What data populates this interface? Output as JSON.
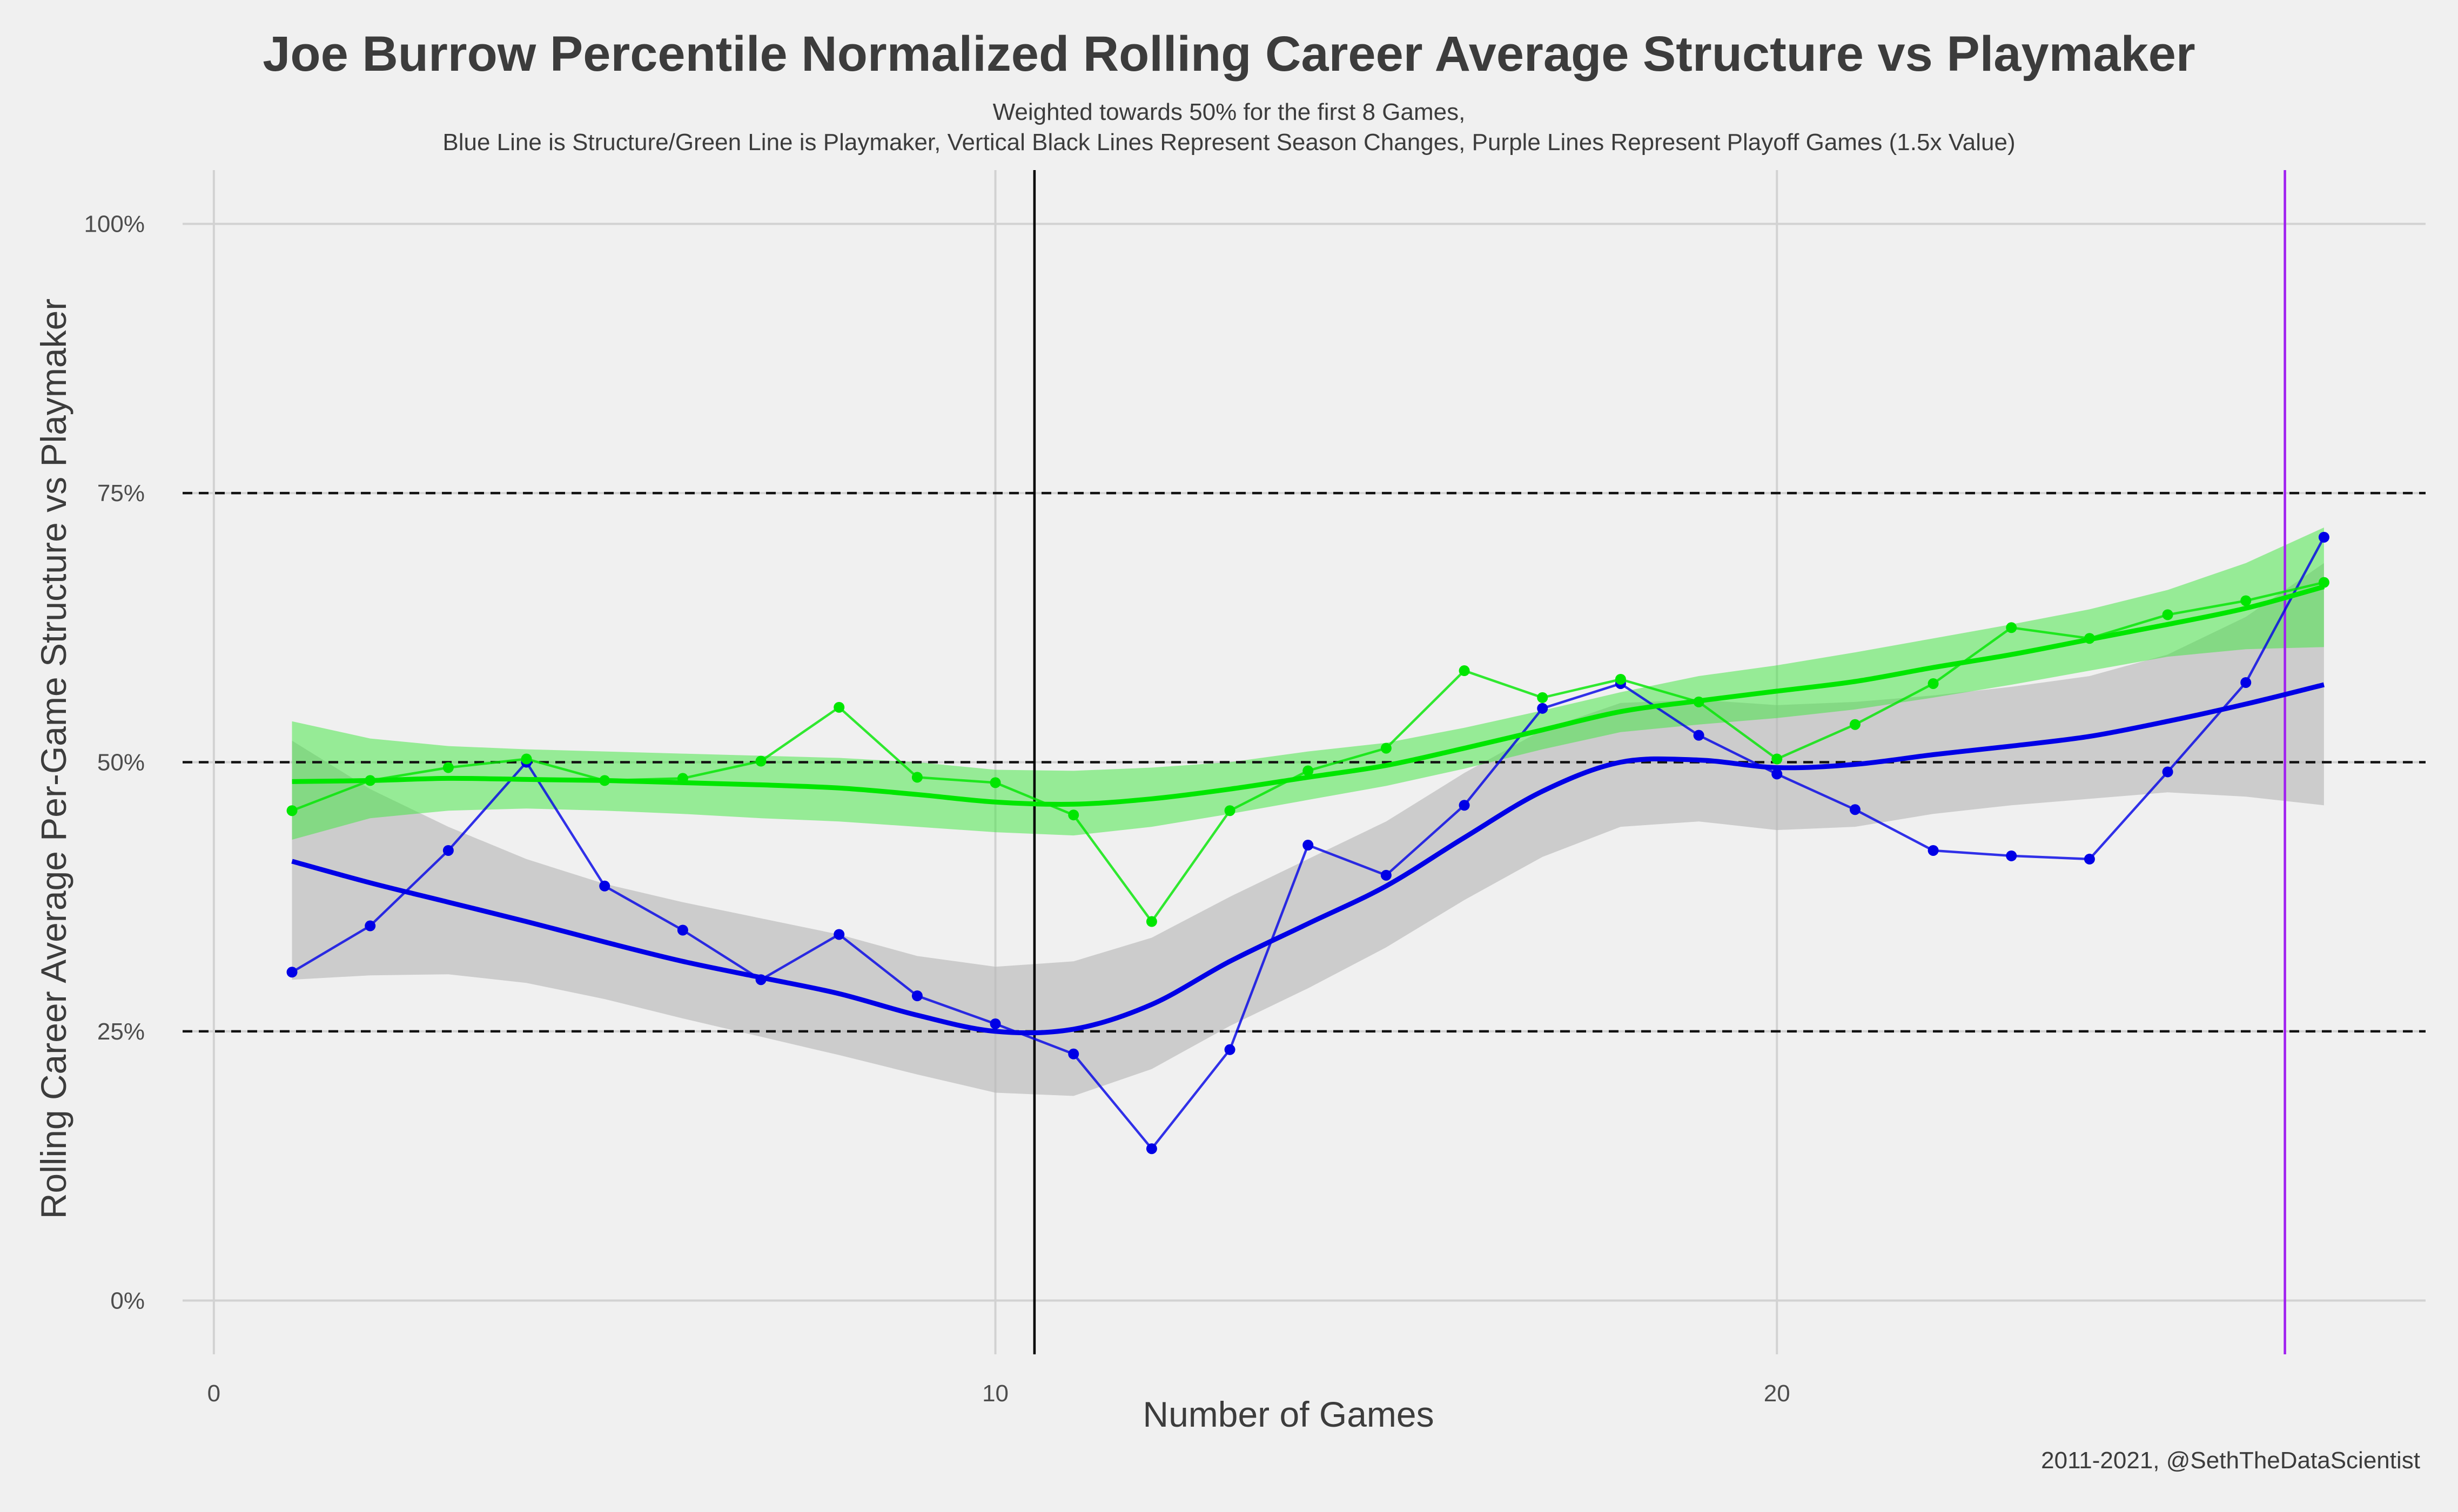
{
  "chart_data": {
    "type": "line",
    "title": "Joe Burrow Percentile Normalized Rolling Career Average Structure vs Playmaker",
    "subtitle_lines": [
      "Weighted towards 50% for the first 8 Games,",
      "Blue Line is Structure/Green Line is Playmaker, Vertical Black Lines Represent Season Changes, Purple Lines Represent Playoff Games (1.5x Value)"
    ],
    "xlabel": "Number of Games",
    "ylabel": "Rolling Career Average Per-Game Structure vs Playmaker",
    "caption": "2011-2021, @SethTheDataScientist",
    "xlim": [
      -0.4,
      28.3
    ],
    "ylim": [
      -0.05,
      1.05
    ],
    "x_ticks": [
      0,
      10,
      20
    ],
    "y_ticks": [
      0,
      0.25,
      0.5,
      0.75,
      1.0
    ],
    "y_tick_labels": [
      "0%",
      "25%",
      "50%",
      "75%",
      "100%"
    ],
    "reference_lines": [
      0.25,
      0.5,
      0.75
    ],
    "season_change_x": [
      10.5
    ],
    "playoff_x": [
      26.5
    ],
    "x": [
      1,
      2,
      3,
      4,
      5,
      6,
      7,
      8,
      9,
      10,
      11,
      12,
      13,
      14,
      15,
      16,
      17,
      18,
      19,
      20,
      21,
      22,
      23,
      24,
      25,
      26,
      27
    ],
    "series": [
      {
        "name": "Structure",
        "color": "#0000e6",
        "values": [
          0.305,
          0.348,
          0.418,
          0.5,
          0.385,
          0.344,
          0.298,
          0.34,
          0.283,
          0.257,
          0.229,
          0.141,
          0.233,
          0.423,
          0.395,
          0.46,
          0.55,
          0.573,
          0.525,
          0.489,
          0.456,
          0.418,
          0.413,
          0.41,
          0.491,
          0.574,
          0.709
        ],
        "smooth": [
          0.408,
          0.388,
          0.37,
          0.352,
          0.333,
          0.315,
          0.3,
          0.285,
          0.265,
          0.25,
          0.252,
          0.275,
          0.315,
          0.35,
          0.385,
          0.43,
          0.473,
          0.5,
          0.502,
          0.495,
          0.498,
          0.507,
          0.515,
          0.524,
          0.538,
          0.554,
          0.572
        ],
        "band_low": [
          0.298,
          0.302,
          0.303,
          0.295,
          0.28,
          0.262,
          0.245,
          0.228,
          0.21,
          0.193,
          0.19,
          0.215,
          0.255,
          0.29,
          0.328,
          0.372,
          0.412,
          0.44,
          0.445,
          0.437,
          0.44,
          0.452,
          0.46,
          0.466,
          0.472,
          0.468,
          0.46
        ],
        "band_high": [
          0.52,
          0.475,
          0.44,
          0.41,
          0.387,
          0.37,
          0.355,
          0.34,
          0.32,
          0.31,
          0.315,
          0.337,
          0.375,
          0.41,
          0.445,
          0.49,
          0.53,
          0.555,
          0.558,
          0.553,
          0.556,
          0.562,
          0.57,
          0.58,
          0.6,
          0.635,
          0.685
        ]
      },
      {
        "name": "Playmaker",
        "color": "#00e600",
        "values": [
          0.455,
          0.483,
          0.495,
          0.503,
          0.483,
          0.485,
          0.501,
          0.551,
          0.486,
          0.481,
          0.451,
          0.352,
          0.455,
          0.492,
          0.513,
          0.585,
          0.56,
          0.577,
          0.556,
          0.503,
          0.535,
          0.573,
          0.625,
          0.615,
          0.637,
          0.65,
          0.667
        ],
        "smooth": [
          0.482,
          0.483,
          0.485,
          0.484,
          0.483,
          0.481,
          0.479,
          0.476,
          0.47,
          0.463,
          0.461,
          0.466,
          0.475,
          0.486,
          0.497,
          0.513,
          0.53,
          0.547,
          0.557,
          0.566,
          0.575,
          0.588,
          0.6,
          0.614,
          0.628,
          0.643,
          0.663
        ],
        "band_low": [
          0.428,
          0.448,
          0.455,
          0.457,
          0.455,
          0.452,
          0.448,
          0.445,
          0.44,
          0.435,
          0.432,
          0.44,
          0.452,
          0.465,
          0.478,
          0.494,
          0.512,
          0.528,
          0.535,
          0.541,
          0.549,
          0.56,
          0.572,
          0.585,
          0.598,
          0.605,
          0.607
        ],
        "band_high": [
          0.538,
          0.522,
          0.515,
          0.512,
          0.51,
          0.508,
          0.506,
          0.504,
          0.5,
          0.493,
          0.492,
          0.495,
          0.5,
          0.51,
          0.518,
          0.532,
          0.548,
          0.565,
          0.58,
          0.59,
          0.602,
          0.615,
          0.628,
          0.642,
          0.66,
          0.685,
          0.718
        ]
      }
    ]
  }
}
